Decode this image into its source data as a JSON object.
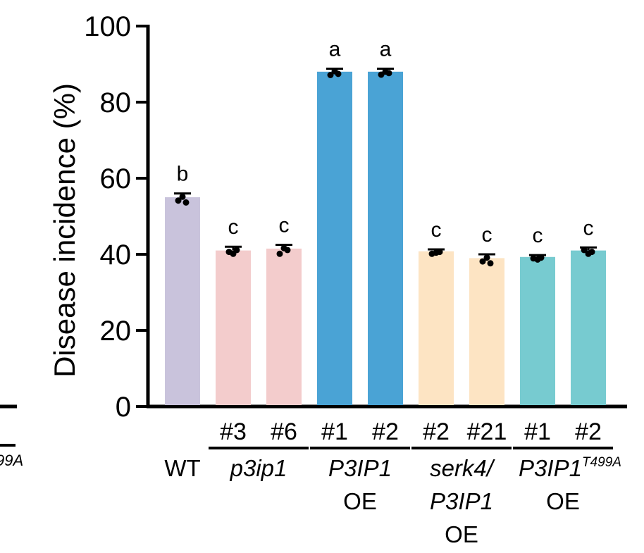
{
  "chart_data": {
    "type": "bar",
    "ylabel": "Disease incidence (%)",
    "ylim": [
      0,
      100
    ],
    "yticks": [
      0,
      20,
      40,
      60,
      80,
      100
    ],
    "bars": [
      {
        "label": "",
        "value": 55,
        "err": 1.0,
        "color": "#c9c3dc",
        "letter": "b",
        "points": [
          54.5,
          55.5,
          54.0
        ]
      },
      {
        "label": "#3",
        "value": 41,
        "err": 1.0,
        "color": "#f3cccc",
        "letter": "c",
        "points": [
          41.0,
          40.5,
          41.5
        ]
      },
      {
        "label": "#6",
        "value": 41.5,
        "err": 1.0,
        "color": "#f3cccc",
        "letter": "c",
        "points": [
          40.5,
          42.0,
          41.5
        ]
      },
      {
        "label": "#1",
        "value": 88,
        "err": 0.8,
        "color": "#4aa3d5",
        "letter": "a",
        "points": [
          87.5,
          88.5,
          87.8
        ]
      },
      {
        "label": "#2",
        "value": 88,
        "err": 0.8,
        "color": "#4aa3d5",
        "letter": "a",
        "points": [
          87.6,
          88.4,
          88.0
        ]
      },
      {
        "label": "#2",
        "value": 40.8,
        "err": 0.5,
        "color": "#fde4c3",
        "letter": "c",
        "points": [
          40.5,
          40.8,
          41.0
        ]
      },
      {
        "label": "#21",
        "value": 39,
        "err": 1.0,
        "color": "#fde4c3",
        "letter": "c",
        "points": [
          38.5,
          39.5,
          38.0
        ]
      },
      {
        "label": "#1",
        "value": 39.3,
        "err": 0.5,
        "color": "#77cbd0",
        "letter": "c",
        "points": [
          39.3,
          39.0,
          39.5
        ]
      },
      {
        "label": "#2",
        "value": 41,
        "err": 0.8,
        "color": "#77cbd0",
        "letter": "c",
        "points": [
          41.5,
          40.5,
          41.0
        ]
      }
    ],
    "groups": [
      {
        "label_lines": [
          "WT"
        ],
        "italic": [
          false
        ],
        "bars": [
          0
        ]
      },
      {
        "label_lines": [
          "p3ip1"
        ],
        "italic": [
          true
        ],
        "bars": [
          1,
          2
        ]
      },
      {
        "label_lines": [
          "P3IP1",
          "OE"
        ],
        "italic": [
          true,
          false
        ],
        "bars": [
          3,
          4
        ]
      },
      {
        "label_lines": [
          "serk4/",
          "P3IP1",
          "OE"
        ],
        "italic": [
          true,
          true,
          false
        ],
        "bars": [
          5,
          6
        ]
      },
      {
        "label_lines": [
          "P3IP1",
          "OE"
        ],
        "italic": [
          true,
          false
        ],
        "sup": "T499A",
        "bars": [
          7,
          8
        ]
      }
    ],
    "left_fragment": "99A"
  }
}
